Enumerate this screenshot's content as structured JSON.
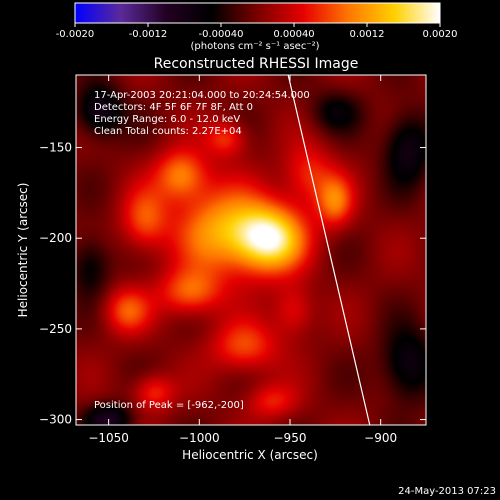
{
  "chart_data": {
    "type": "heatmap",
    "title": "Reconstructed RHESSI Image",
    "xlabel": "Heliocentric X (arcsec)",
    "ylabel": "Heliocentric Y (arcsec)",
    "xlim": [
      -1068,
      -875
    ],
    "ylim": [
      -303,
      -110
    ],
    "x_ticks": [
      -1050,
      -1000,
      -950,
      -900
    ],
    "y_ticks": [
      -150,
      -200,
      -250,
      -300
    ],
    "colorbar": {
      "range": [
        -0.002,
        0.002
      ],
      "ticks": [
        "-0.0020",
        "-0.0012",
        "-0.00040",
        "0.00040",
        "0.0012",
        "0.0020"
      ],
      "unit_label": "(photons cm⁻² s⁻¹ asec⁻²)",
      "colormap": [
        "#0000ff",
        "#5a2a9a",
        "#220022",
        "#000000",
        "#7a0000",
        "#e60000",
        "#ff7700",
        "#ffd000",
        "#ffffff"
      ]
    },
    "annotations": [
      "17-Apr-2003 20:21:04.000 to 20:24:54.000",
      "Detectors: 4F 5F 6F 7F 8F, Att 0",
      "Energy Range: 6.0 - 12.0 keV",
      "Clean    Total counts: 2.27E+04"
    ],
    "peak": {
      "label": "Position of Peak = [-962,-200]",
      "x": -962,
      "y": -200
    },
    "sources": [
      {
        "x": -962,
        "y": -200,
        "sx": 14,
        "sy": 13,
        "amp": 0.0019
      },
      {
        "x": -990,
        "y": -195,
        "sx": 17,
        "sy": 18,
        "amp": 0.0011
      },
      {
        "x": -1010,
        "y": -165,
        "sx": 10,
        "sy": 10,
        "amp": 0.001
      },
      {
        "x": -1030,
        "y": -190,
        "sx": 9,
        "sy": 12,
        "amp": 0.0008
      },
      {
        "x": -1005,
        "y": -230,
        "sx": 12,
        "sy": 9,
        "amp": 0.0009
      },
      {
        "x": -1040,
        "y": -240,
        "sx": 9,
        "sy": 9,
        "amp": 0.0008
      },
      {
        "x": -975,
        "y": -260,
        "sx": 13,
        "sy": 10,
        "amp": 0.0008
      },
      {
        "x": -1025,
        "y": -285,
        "sx": 8,
        "sy": 7,
        "amp": 0.0007
      },
      {
        "x": -960,
        "y": -290,
        "sx": 10,
        "sy": 7,
        "amp": 0.0006
      },
      {
        "x": -940,
        "y": -165,
        "sx": 10,
        "sy": 12,
        "amp": 0.0007
      },
      {
        "x": -925,
        "y": -180,
        "sx": 7,
        "sy": 10,
        "amp": 0.0009
      },
      {
        "x": -948,
        "y": -240,
        "sx": 8,
        "sy": 10,
        "amp": 0.0006
      },
      {
        "x": -985,
        "y": -145,
        "sx": 8,
        "sy": 7,
        "amp": 0.0007
      },
      {
        "x": -1055,
        "y": -130,
        "sx": 9,
        "sy": 10,
        "amp": -0.0009
      },
      {
        "x": -1060,
        "y": -215,
        "sx": 8,
        "sy": 12,
        "amp": -0.0006
      },
      {
        "x": -885,
        "y": -150,
        "sx": 9,
        "sy": 14,
        "amp": -0.0008
      },
      {
        "x": -885,
        "y": -270,
        "sx": 10,
        "sy": 14,
        "amp": -0.0008
      },
      {
        "x": -1050,
        "y": -300,
        "sx": 9,
        "sy": 6,
        "amp": -0.0009
      },
      {
        "x": -925,
        "y": -130,
        "sx": 10,
        "sy": 8,
        "amp": -0.0005
      }
    ],
    "limb": [
      [
        -951,
        -110
      ],
      [
        -906,
        -303
      ]
    ]
  },
  "footer": {
    "timestamp": "24-May-2013 07:23"
  }
}
